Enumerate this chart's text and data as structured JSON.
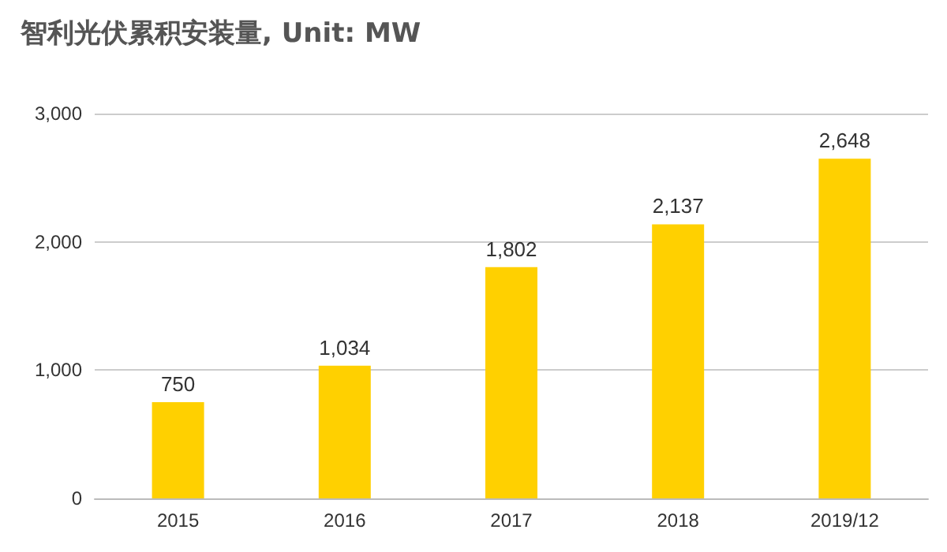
{
  "chart_data": {
    "type": "bar",
    "title": "智利光伏累积安装量, Unit: MW",
    "categories": [
      "2015",
      "2016",
      "2017",
      "2018",
      "2019/12"
    ],
    "values": [
      750,
      1034,
      1802,
      2137,
      2648
    ],
    "value_labels": [
      "750",
      "1,034",
      "1,802",
      "2,137",
      "2,648"
    ],
    "color": "#ffd000",
    "ylim": [
      0,
      3000
    ],
    "yticks": [
      {
        "value": 0,
        "label": "0"
      },
      {
        "value": 1000,
        "label": "1,000"
      },
      {
        "value": 2000,
        "label": "2,000"
      },
      {
        "value": 3000,
        "label": "3,000"
      }
    ],
    "grid": "y"
  }
}
